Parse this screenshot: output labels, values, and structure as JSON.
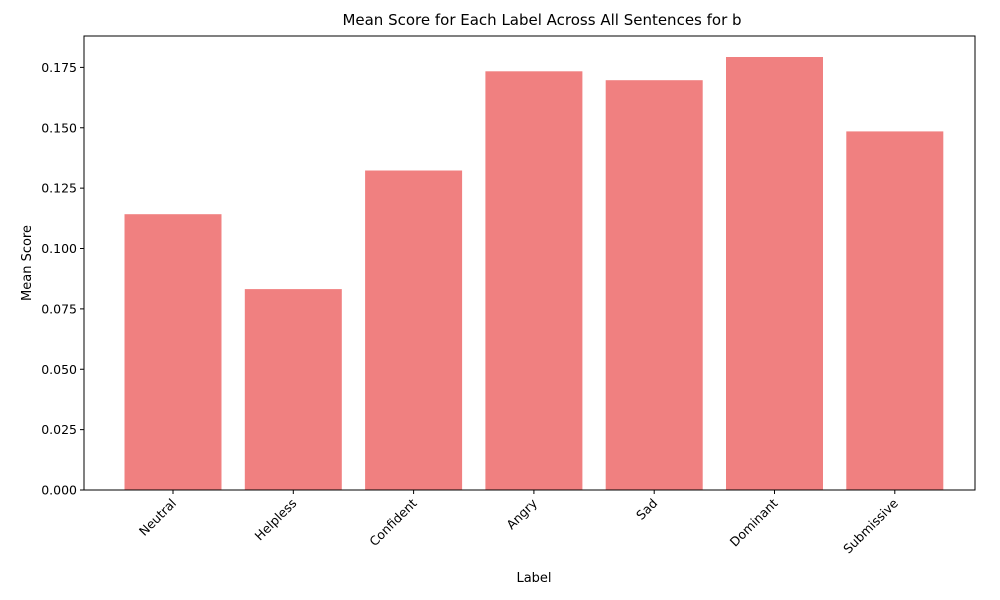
{
  "chart_data": {
    "type": "bar",
    "title": "Mean Score for Each Label Across All Sentences for b",
    "xlabel": "Label",
    "ylabel": "Mean Score",
    "categories": [
      "Neutral",
      "Helpless",
      "Confident",
      "Angry",
      "Sad",
      "Dominant",
      "Submissive"
    ],
    "values": [
      0.1142,
      0.0832,
      0.1323,
      0.1734,
      0.1697,
      0.1793,
      0.1485
    ],
    "ylim": [
      0,
      0.188
    ],
    "yticks": [
      "0.000",
      "0.025",
      "0.050",
      "0.075",
      "0.100",
      "0.125",
      "0.150",
      "0.175"
    ],
    "bar_color": "#f08080",
    "grid": false,
    "legend": "none"
  }
}
